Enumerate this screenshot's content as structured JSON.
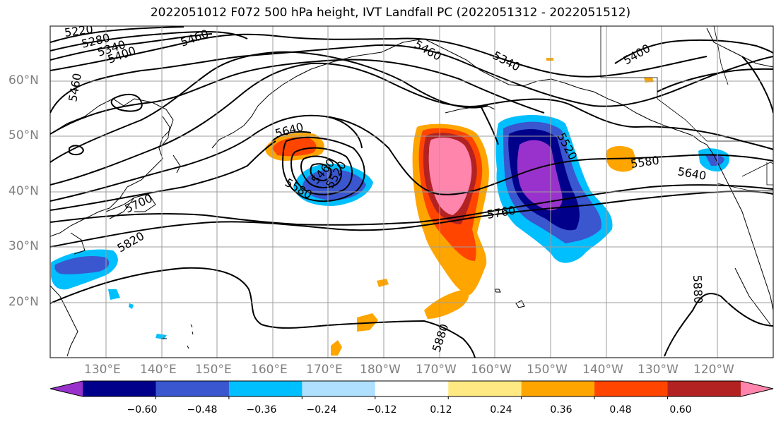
{
  "title": "2022051012 F072 500 hPa height, IVT Landfall PC (2022051312 - 2022051512)",
  "latitude_labels": [
    "60°N",
    "50°N",
    "40°N",
    "30°N",
    "20°N"
  ],
  "longitude_labels": [
    "130°E",
    "140°E",
    "150°E",
    "160°E",
    "170°E",
    "180°W",
    "170°W",
    "160°W",
    "150°W",
    "140°W",
    "130°W",
    "120°W"
  ],
  "contour_labels": [
    "5220",
    "5280",
    "5340",
    "5400",
    "5460",
    "5460",
    "5340",
    "5460",
    "5400",
    "5520",
    "5580",
    "5640",
    "5640",
    "5580",
    "5460",
    "5520",
    "5700",
    "5760",
    "5820",
    "5880",
    "5880"
  ],
  "colorbar": {
    "ticks": [
      "−0.60",
      "−0.48",
      "−0.36",
      "−0.24",
      "−0.12",
      "0.12",
      "0.24",
      "0.36",
      "0.48",
      "0.60"
    ],
    "colors": [
      "#9932cc",
      "#00008b",
      "#3a57cf",
      "#00bfff",
      "#b0e0ff",
      "#ffffff",
      "#ffe983",
      "#ffa500",
      "#ff4500",
      "#b22222",
      "#ff85ad"
    ]
  },
  "colors": {
    "land_outline": "#000000",
    "grid": "#9e9e9e",
    "contour": "#000000"
  }
}
